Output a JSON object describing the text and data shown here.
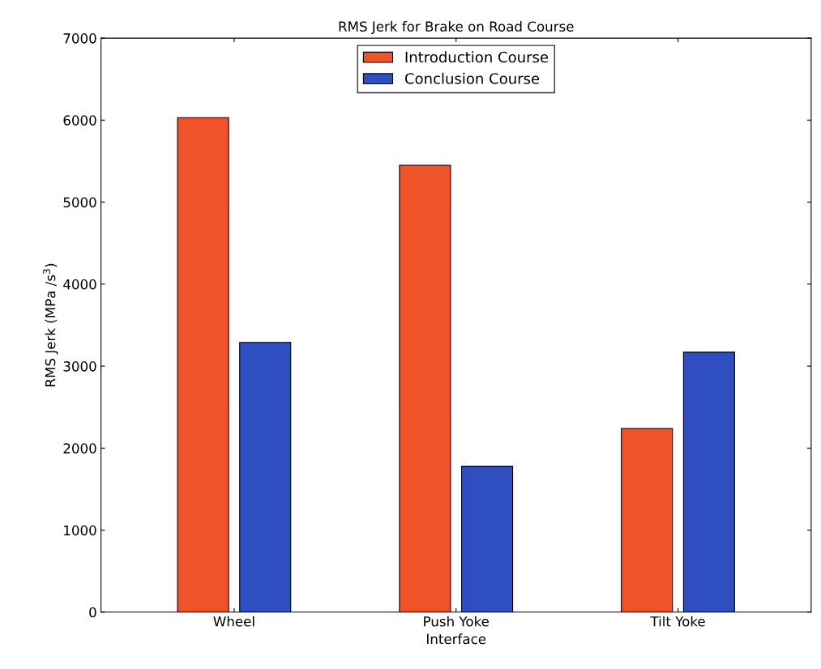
{
  "chart_data": {
    "type": "bar",
    "title": "RMS Jerk for Brake on Road Course",
    "xlabel": "Interface",
    "ylabel": "RMS Jerk (MPa /s$^{3}$)",
    "categories": [
      "Wheel",
      "Push Yoke",
      "Tilt Yoke"
    ],
    "series": [
      {
        "name": "Introduction Course",
        "color": "#f0522a",
        "values": [
          6030,
          5450,
          2240
        ]
      },
      {
        "name": "Conclusion Course",
        "color": "#2f4fc0",
        "values": [
          3290,
          1780,
          3170
        ]
      }
    ],
    "ylim": [
      0,
      7000
    ],
    "yticks": [
      0,
      1000,
      2000,
      3000,
      4000,
      5000,
      6000,
      7000
    ],
    "grid": false,
    "legend": "top"
  }
}
